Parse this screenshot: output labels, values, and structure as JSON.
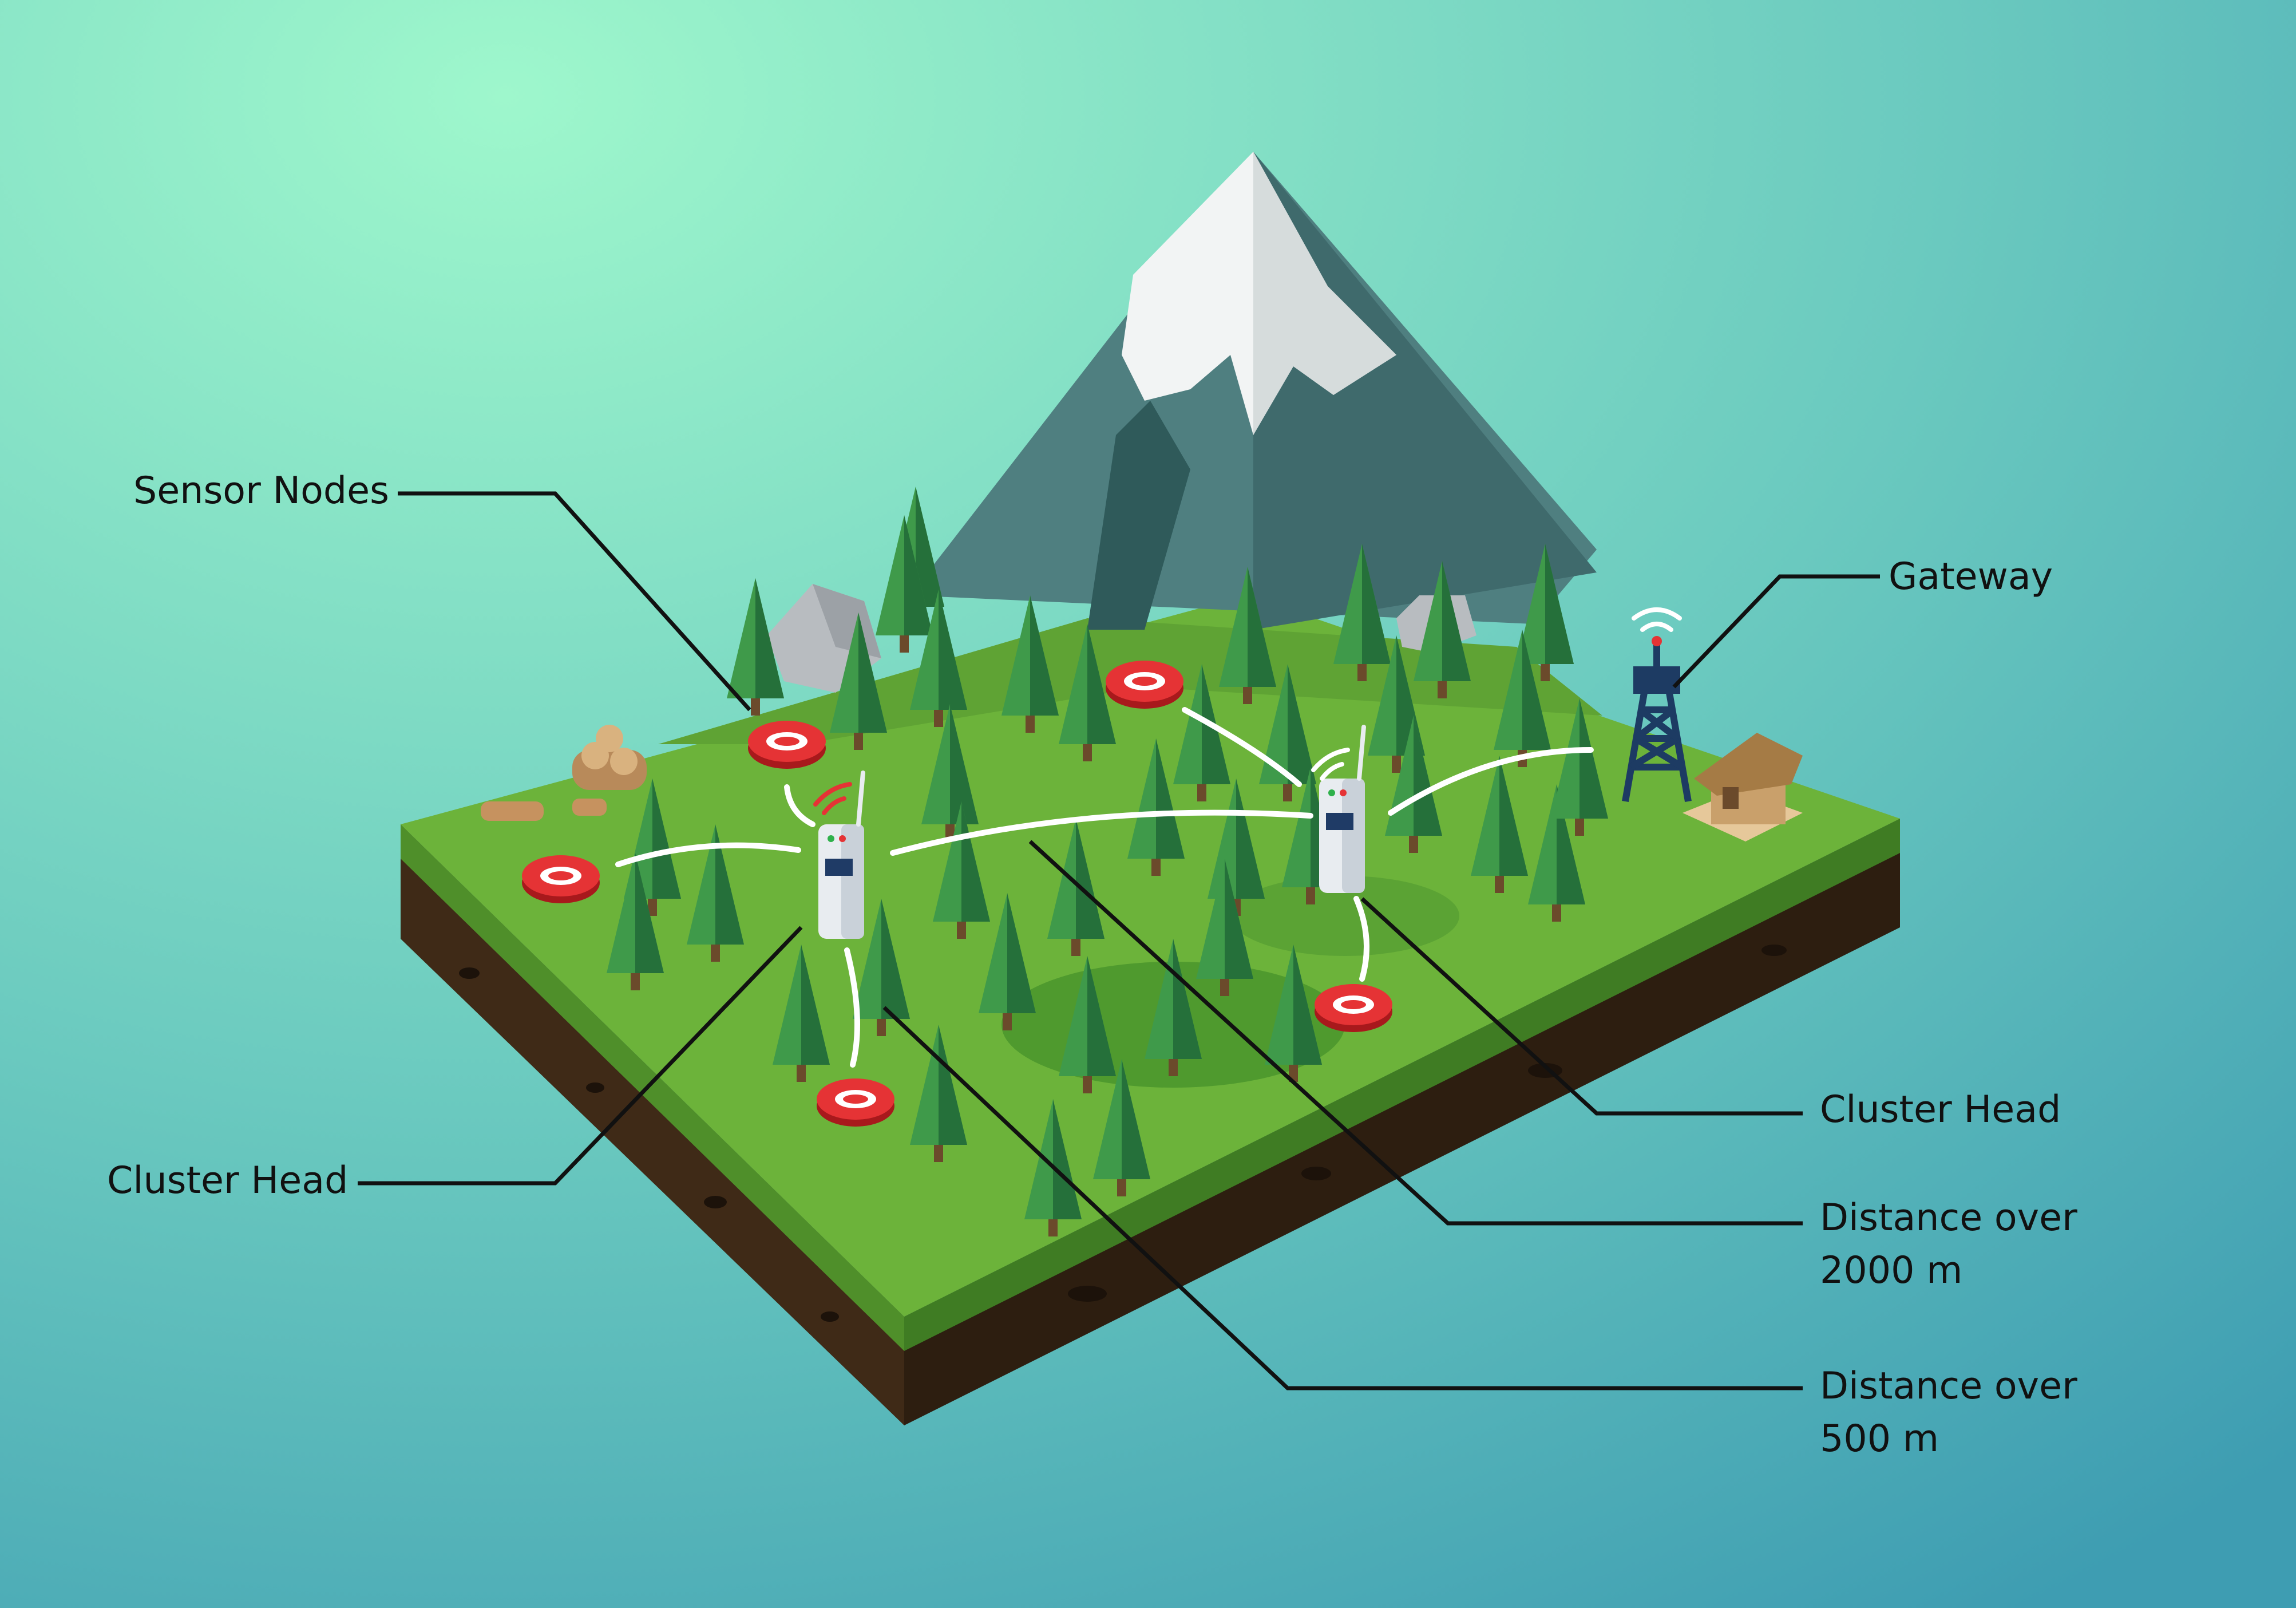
{
  "diagram": {
    "labels": {
      "sensor_nodes": "Sensor Nodes",
      "gateway": "Gateway",
      "cluster_head_left": "Cluster Head",
      "cluster_head_right": "Cluster Head",
      "distance_2000": [
        "Distance over",
        "2000 m"
      ],
      "distance_500": [
        "Distance over",
        "500 m"
      ]
    },
    "colors": {
      "background_light": "#9ef7cc",
      "background_dark": "#3e9db2",
      "grass": "#6cb33a",
      "grass_dark": "#4a8a2a",
      "soil": "#3f2a17",
      "tree": "#2f7a3c",
      "mountain": "#4f7f80",
      "snow": "#f2f4f4",
      "sensor_node": "#e03133",
      "tower": "#1d3b63",
      "link": "#ffffff",
      "leader_line": "#111111"
    },
    "icons": [
      "mountain-icon",
      "tree-icon",
      "rock-icon",
      "log-pile-icon",
      "sensor-node-icon",
      "cluster-head-device-icon",
      "gateway-tower-icon",
      "hut-icon",
      "wifi-signal-icon"
    ]
  }
}
